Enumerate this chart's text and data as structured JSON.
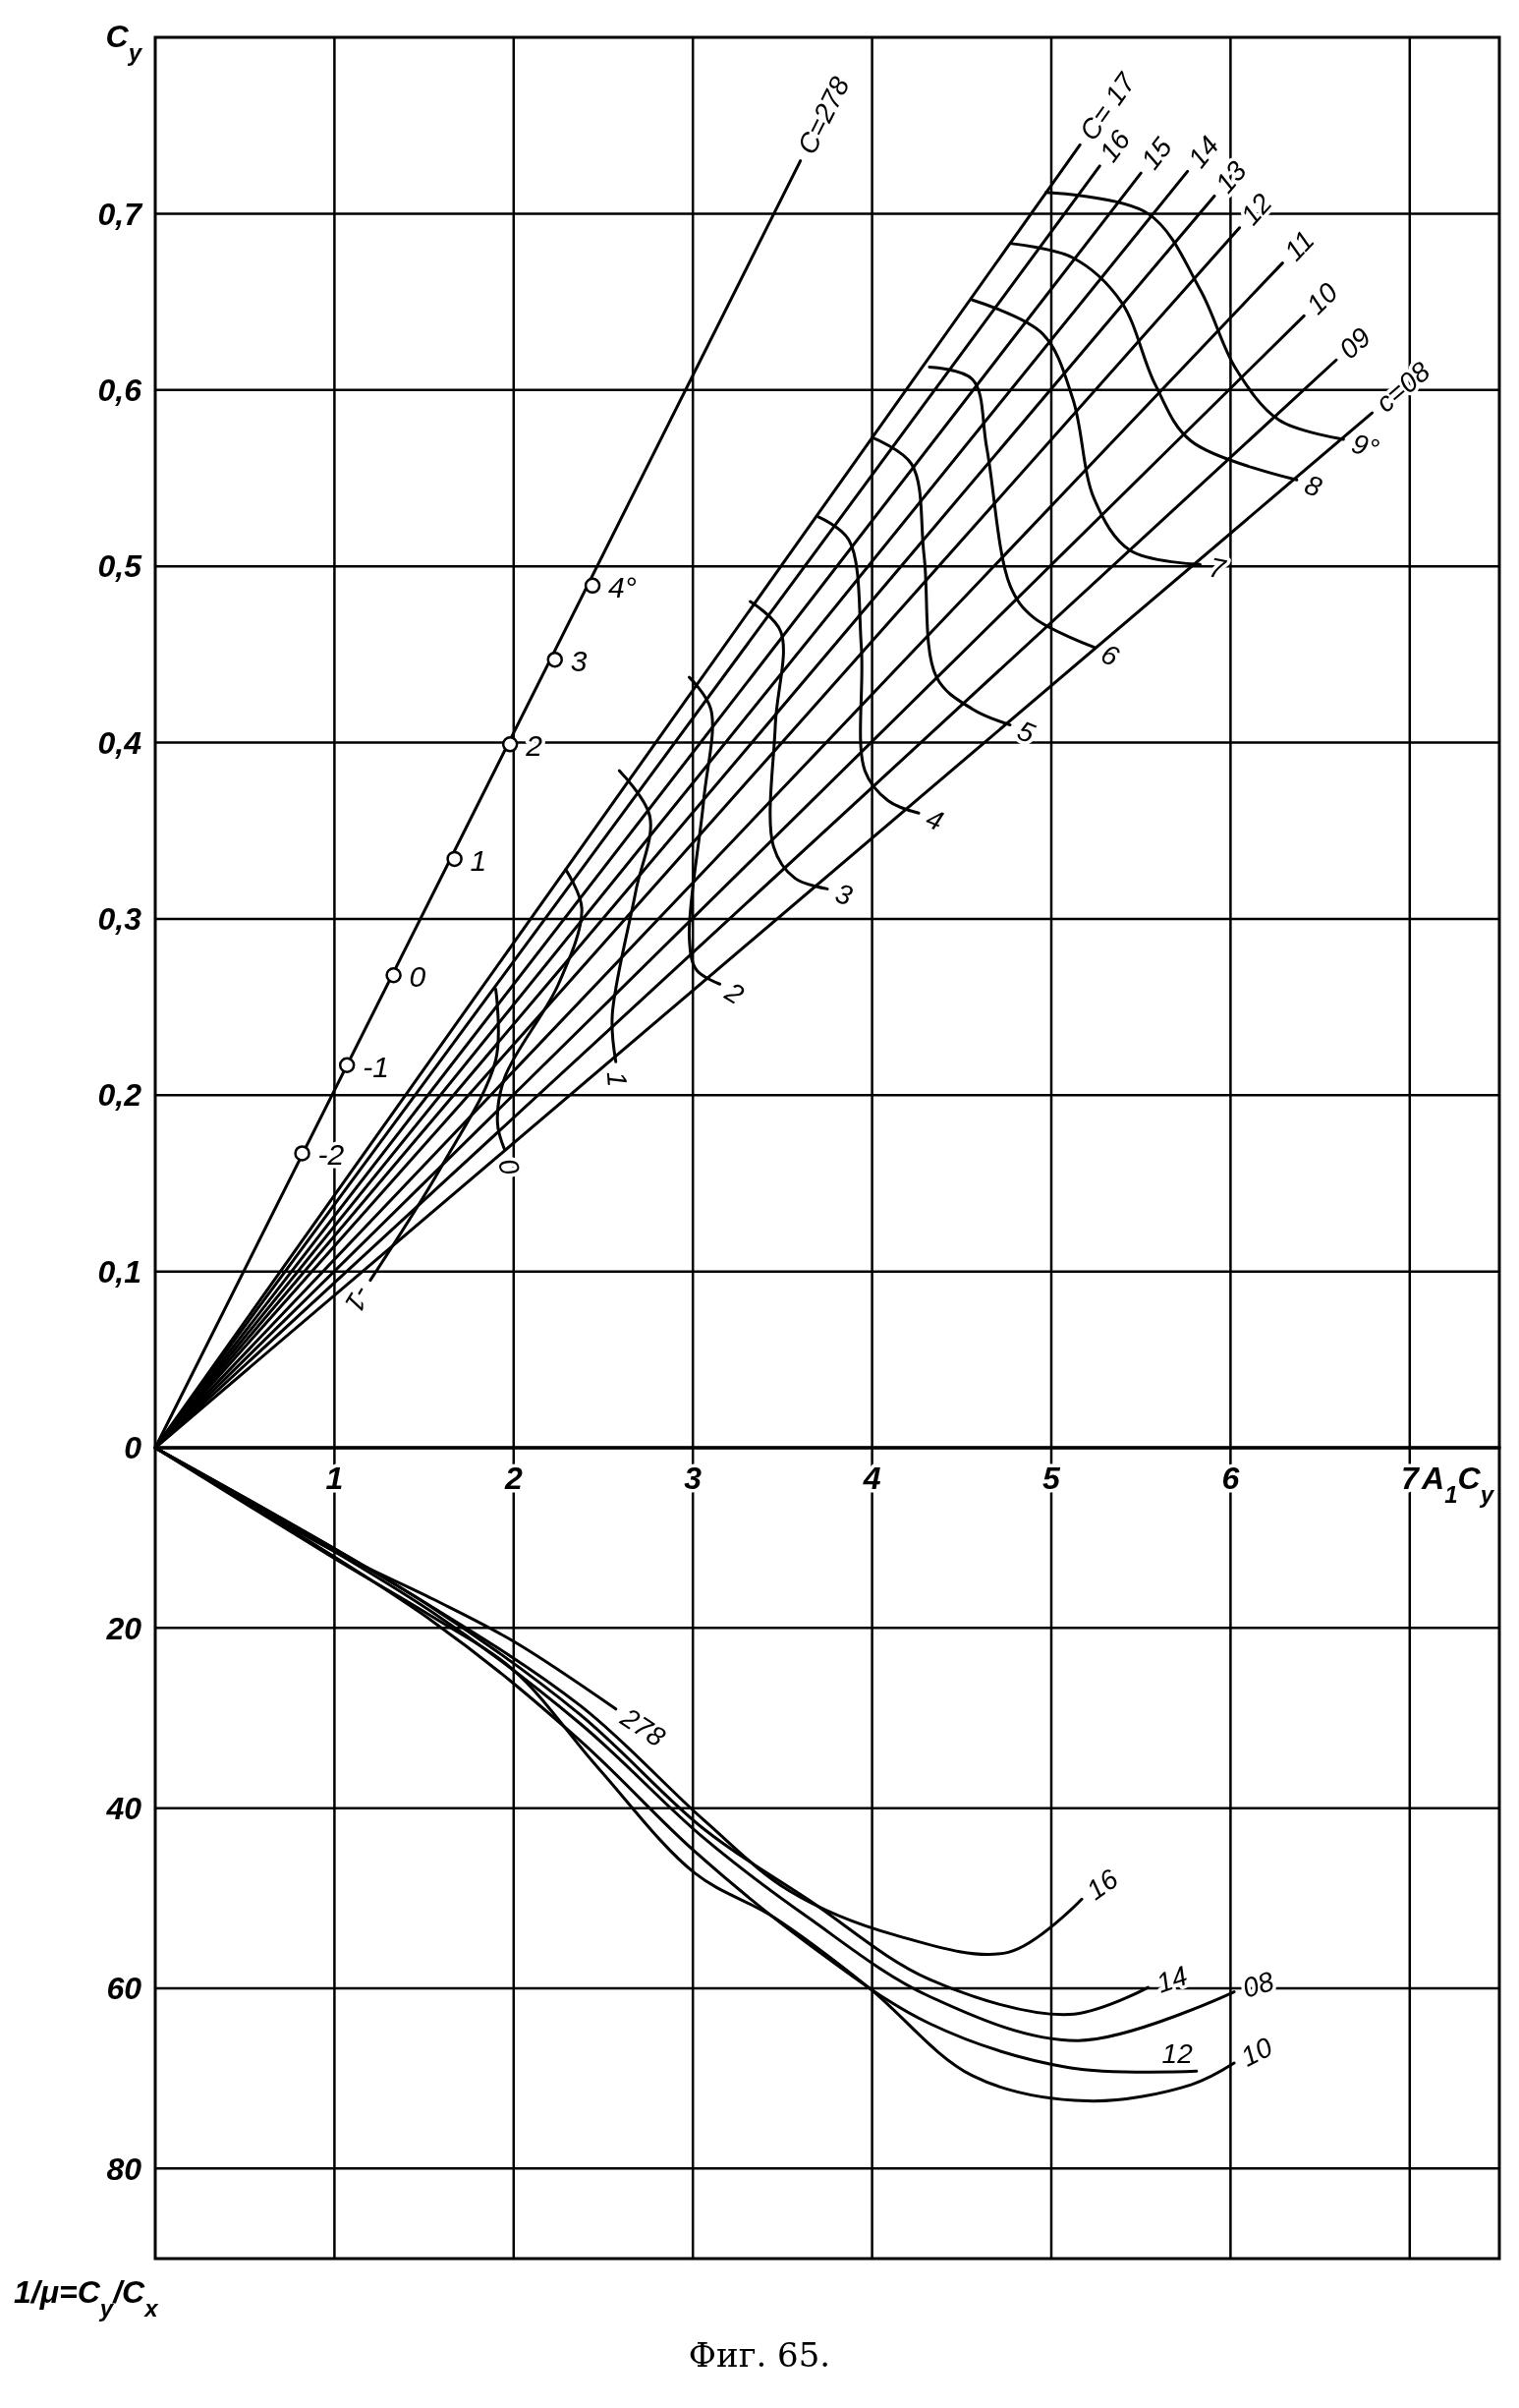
{
  "chart_data": [
    {
      "type": "line",
      "ylabel": "C$_{y}$",
      "xlim": [
        0,
        7.5
      ],
      "ylim": [
        0,
        0.8
      ],
      "xticks": [
        {
          "value": 1,
          "label": null
        },
        {
          "value": 2,
          "label": null
        },
        {
          "value": 3,
          "label": null
        },
        {
          "value": 4,
          "label": null
        },
        {
          "value": 5,
          "label": null
        },
        {
          "value": 6,
          "label": null
        },
        {
          "value": 7,
          "label": null
        }
      ],
      "yticks": [
        0,
        {
          "value": 0.1,
          "label": "0,1"
        },
        {
          "value": 0.2,
          "label": "0,2"
        },
        {
          "value": 0.3,
          "label": "0,3"
        },
        {
          "value": 0.4,
          "label": "0,4"
        },
        {
          "value": 0.5,
          "label": "0,5"
        },
        {
          "value": 0.6,
          "label": "0,6"
        },
        {
          "value": 0.7,
          "label": "0,7"
        }
      ],
      "grid": true,
      "tick_labels": "y",
      "annotations": [
        {
          "text": "-2",
          "x": 0.82,
          "y": 0.167
        },
        {
          "text": "-1",
          "x": 1.07,
          "y": 0.217
        },
        {
          "text": "0",
          "x": 1.33,
          "y": 0.268
        },
        {
          "text": "1",
          "x": 1.67,
          "y": 0.334
        },
        {
          "text": "2",
          "x": 1.98,
          "y": 0.399
        },
        {
          "text": "3",
          "x": 2.23,
          "y": 0.447
        },
        {
          "text": "4°",
          "x": 2.44,
          "y": 0.489
        }
      ],
      "series": [
        {
          "name": "C=278",
          "color": "#000000",
          "x": [
            0,
            3.6
          ],
          "values": [
            0,
            0.73
          ]
        },
        {
          "type": "scatter",
          "marker": "circle",
          "color": "#000000",
          "x": [
            0.82,
            1.07,
            1.33,
            1.67,
            1.98,
            2.23,
            2.44
          ],
          "values": [
            0.167,
            0.217,
            0.268,
            0.334,
            0.399,
            0.447,
            0.489
          ]
        },
        {
          "name": "C= 17",
          "color": "#000000",
          "x": [
            0,
            5.16
          ],
          "values": [
            0,
            0.739
          ]
        },
        {
          "name": "16",
          "color": "#000000",
          "x": [
            0,
            5.27
          ],
          "values": [
            0,
            0.727
          ]
        },
        {
          "name": "15",
          "color": "#000000",
          "x": [
            0,
            5.5
          ],
          "values": [
            0,
            0.723
          ]
        },
        {
          "name": "14",
          "color": "#000000",
          "x": [
            0,
            5.76
          ],
          "values": [
            0,
            0.724
          ]
        },
        {
          "name": "13",
          "color": "#000000",
          "x": [
            0,
            5.91
          ],
          "values": [
            0,
            0.71
          ]
        },
        {
          "name": "12",
          "color": "#000000",
          "x": [
            0,
            6.05
          ],
          "values": [
            0,
            0.692
          ]
        },
        {
          "name": "11",
          "color": "#000000",
          "x": [
            0,
            6.29
          ],
          "values": [
            0,
            0.672
          ]
        },
        {
          "name": "10",
          "color": "#000000",
          "x": [
            0,
            6.41
          ],
          "values": [
            0,
            0.642
          ]
        },
        {
          "name": "09",
          "color": "#000000",
          "x": [
            0,
            6.59
          ],
          "values": [
            0,
            0.617
          ]
        },
        {
          "name": "c=08",
          "color": "#000000",
          "x": [
            0,
            6.79
          ],
          "values": [
            0,
            0.587
          ]
        },
        {
          "name": "-1",
          "color": "#000000",
          "x": [
            1.9,
            1.9,
            1.6,
            1.2
          ],
          "values": [
            0.26,
            0.22,
            0.16,
            0.095
          ]
        },
        {
          "name": "0",
          "color": "#000000",
          "x": [
            2.29,
            2.38,
            2.25,
            1.95,
            1.91,
            1.95
          ],
          "values": [
            0.328,
            0.306,
            0.263,
            0.21,
            0.184,
            0.169
          ]
        },
        {
          "name": "1",
          "color": "#000000",
          "x": [
            2.59,
            2.76,
            2.68,
            2.55,
            2.57
          ],
          "values": [
            0.384,
            0.358,
            0.315,
            0.245,
            0.219
          ]
        },
        {
          "name": "2",
          "color": "#000000",
          "x": [
            2.98,
            3.1,
            3.06,
            2.98,
            3.02,
            3.15
          ],
          "values": [
            0.437,
            0.419,
            0.367,
            0.289,
            0.271,
            0.263
          ]
        },
        {
          "name": "3",
          "color": "#000000",
          "x": [
            3.32,
            3.49,
            3.46,
            3.45,
            3.57,
            3.75
          ],
          "values": [
            0.48,
            0.463,
            0.41,
            0.341,
            0.323,
            0.317
          ]
        },
        {
          "name": "4",
          "color": "#000000",
          "x": [
            3.7,
            3.87,
            3.94,
            3.96,
            4.09,
            4.26
          ],
          "values": [
            0.528,
            0.515,
            0.454,
            0.384,
            0.367,
            0.36
          ]
        },
        {
          "name": "5",
          "color": "#000000",
          "x": [
            4.0,
            4.22,
            4.29,
            4.36,
            4.56,
            4.77
          ],
          "values": [
            0.573,
            0.558,
            0.506,
            0.437,
            0.419,
            0.41
          ]
        },
        {
          "name": "6",
          "color": "#000000",
          "x": [
            4.32,
            4.56,
            4.64,
            4.77,
            4.9,
            5.24
          ],
          "values": [
            0.613,
            0.606,
            0.567,
            0.489,
            0.471,
            0.454
          ]
        },
        {
          "name": "7",
          "color": "#000000",
          "x": [
            4.56,
            4.95,
            5.12,
            5.24,
            5.44,
            5.83
          ],
          "values": [
            0.651,
            0.632,
            0.595,
            0.538,
            0.509,
            0.501
          ]
        },
        {
          "name": "8",
          "color": "#000000",
          "x": [
            4.78,
            5.12,
            5.39,
            5.58,
            5.78,
            6.37
          ],
          "values": [
            0.683,
            0.675,
            0.65,
            0.603,
            0.571,
            0.549
          ]
        },
        {
          "name": "9°",
          "color": "#000000",
          "x": [
            4.97,
            5.54,
            5.83,
            6.03,
            6.27,
            6.63
          ],
          "values": [
            0.712,
            0.7,
            0.657,
            0.612,
            0.583,
            0.572
          ]
        }
      ]
    },
    {
      "type": "line",
      "xlabel": "A$_{1}$C$_{y}$",
      "ylabel": "1/μ=C$_{y}$/C$_{x}$",
      "xlim": [
        0,
        7.5
      ],
      "ylim": [
        90,
        0
      ],
      "xticks": [
        1,
        2,
        3,
        4,
        5,
        6,
        7
      ],
      "yticks": [
        20,
        40,
        60,
        80
      ],
      "grid": true,
      "annotations": [
        "Фиг. 65."
      ],
      "series": [
        {
          "name": "278",
          "color": "#000000",
          "x": [
            0,
            1.0,
            1.55,
            2.0,
            2.57
          ],
          "values": [
            0,
            11.5,
            16.8,
            21.5,
            29
          ]
        },
        {
          "name": "16",
          "color": "#000000",
          "x": [
            0,
            1.4,
            2.37,
            3.06,
            3.54,
            4.13,
            4.76,
            5.17
          ],
          "values": [
            0,
            15.9,
            28.6,
            41.3,
            49.2,
            54.1,
            56.0,
            50.1
          ]
        },
        {
          "name": "14",
          "color": "#000000",
          "x": [
            0,
            1.55,
            2.37,
            3.06,
            3.64,
            4.32,
            5.1,
            5.54
          ],
          "values": [
            0,
            17.8,
            29.6,
            42.3,
            50.1,
            59.0,
            62.9,
            59.9
          ]
        },
        {
          "name": "08",
          "color": "#000000",
          "x": [
            0,
            1.55,
            2.37,
            3.06,
            3.64,
            4.32,
            5.15,
            6.02
          ],
          "values": [
            0,
            18.3,
            30.6,
            43.3,
            52.1,
            60.9,
            65.8,
            60.4
          ]
        },
        {
          "name": "12",
          "color": "#000000",
          "x": [
            0,
            1.55,
            2.37,
            3.01,
            3.64,
            4.32,
            5.1,
            5.81
          ],
          "values": [
            0,
            19.3,
            32.5,
            44.8,
            55.0,
            63.9,
            68.8,
            69.2
          ]
        },
        {
          "name": "10",
          "color": "#000000",
          "x": [
            0,
            1.01,
            1.55,
            2.0,
            2.47,
            3.01,
            3.45,
            3.98,
            4.56,
            5.2,
            5.78,
            6.02
          ],
          "values": [
            0,
            12.4,
            18.8,
            24.7,
            35.5,
            47.2,
            52.1,
            59.9,
            69.7,
            72.5,
            70.7,
            68.3
          ]
        }
      ]
    }
  ]
}
